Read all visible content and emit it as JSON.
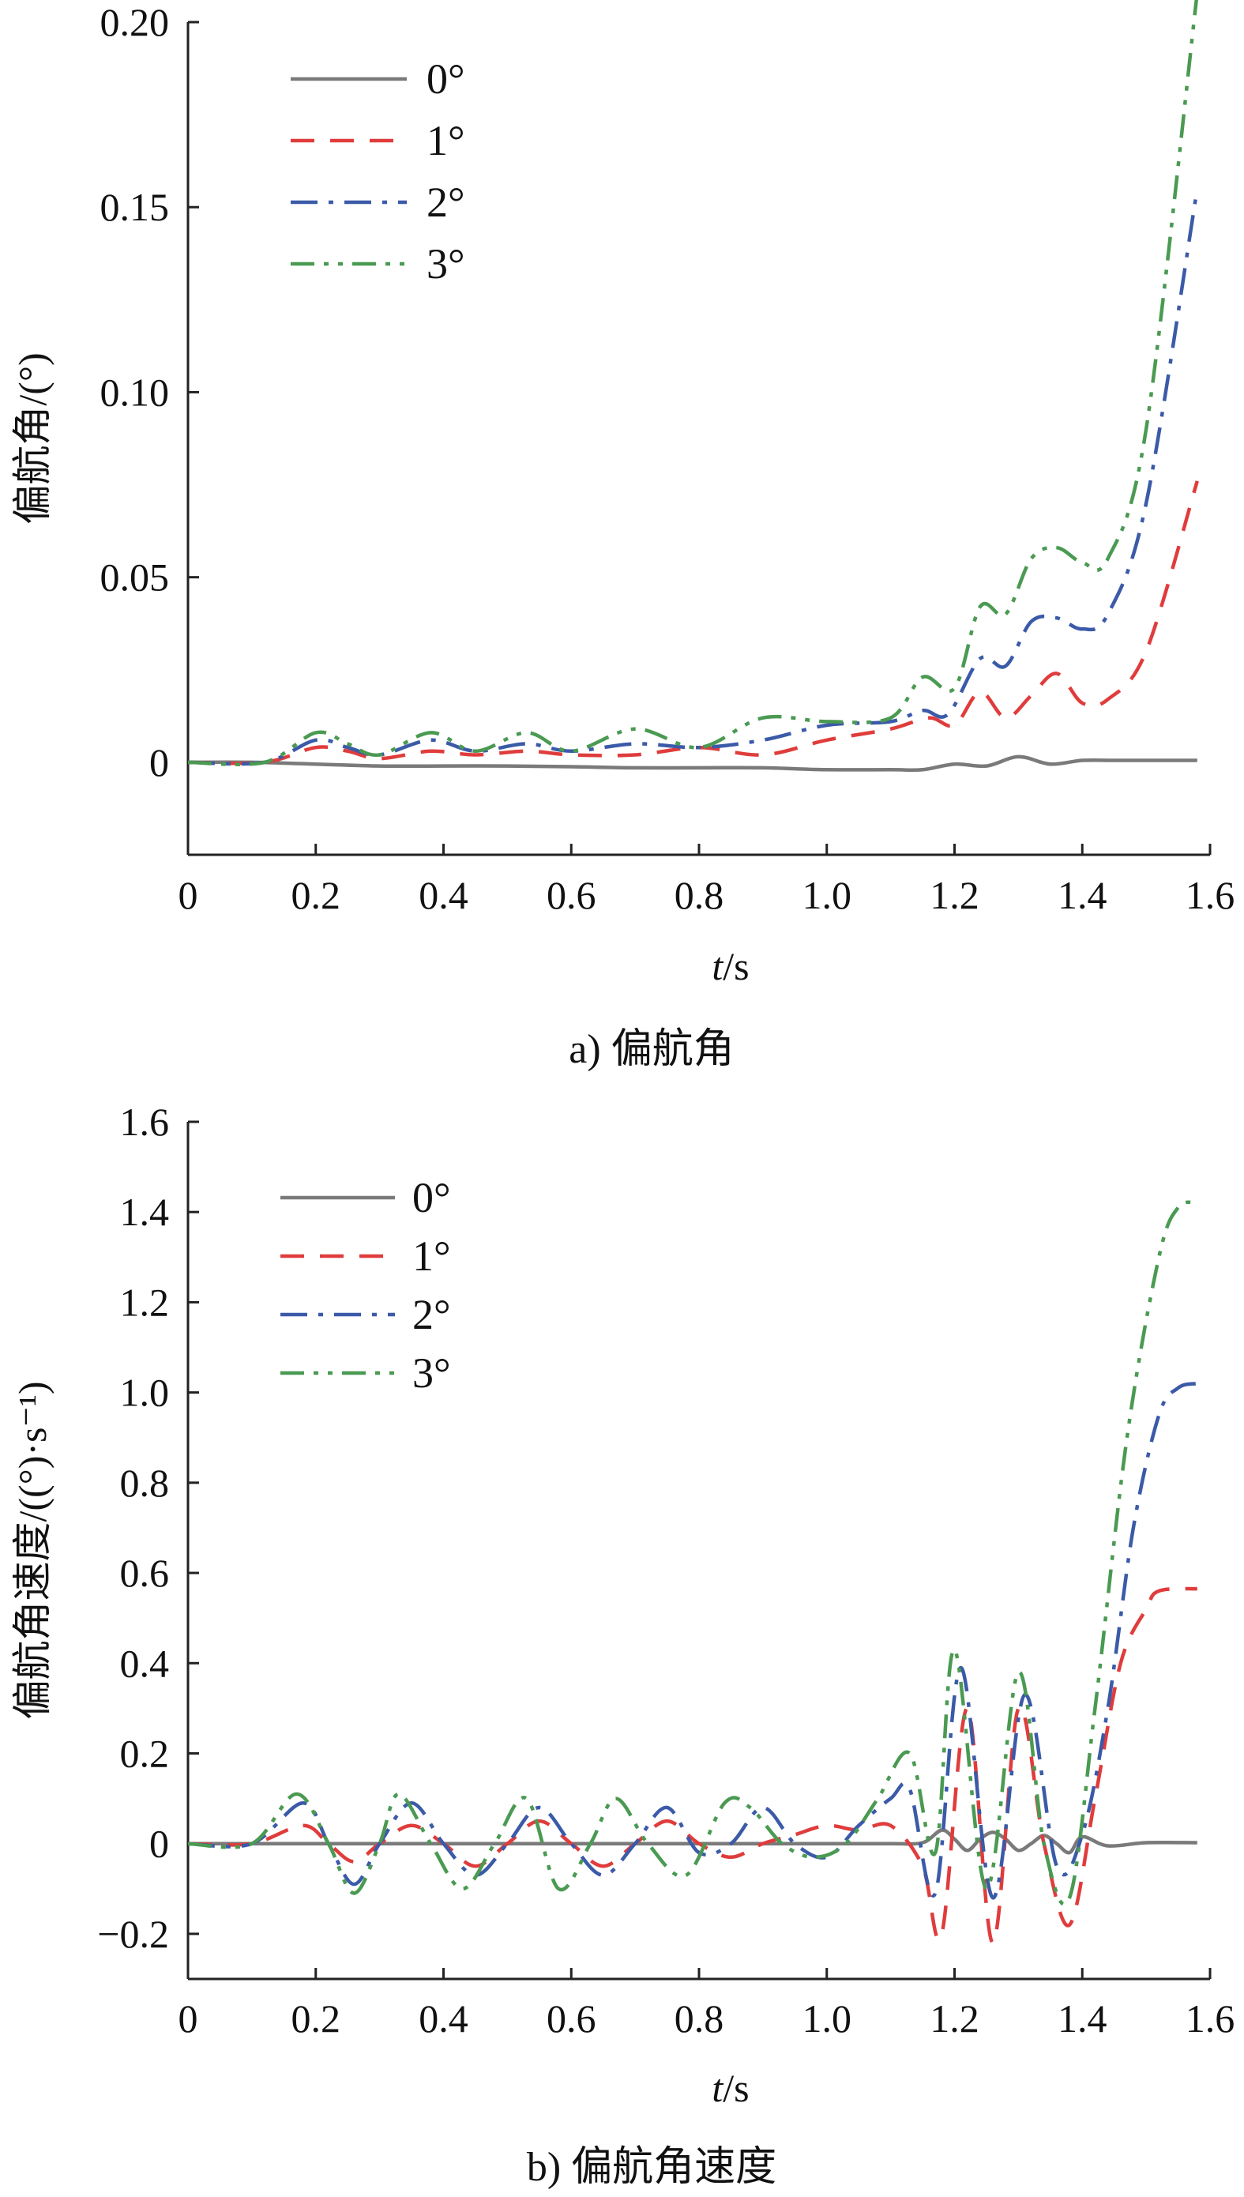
{
  "chart_data": [
    {
      "id": "a",
      "type": "line",
      "caption": "a) 偏航角",
      "xlabel_italic": "t",
      "xlabel_unit": "/s",
      "ylabel": "偏航角/(°)",
      "xlim": [
        0,
        1.6
      ],
      "ylim": [
        -0.025,
        0.2
      ],
      "xticks": [
        "0",
        "0.2",
        "0.4",
        "0.6",
        "0.8",
        "1.0",
        "1.2",
        "1.4",
        "1.6"
      ],
      "yticks": [
        {
          "value": 0,
          "label": "0"
        },
        {
          "value": 0.05,
          "label": "0.05"
        },
        {
          "value": 0.1,
          "label": "0.10"
        },
        {
          "value": 0.15,
          "label": "0.15"
        },
        {
          "value": 0.2,
          "label": "0.20"
        }
      ],
      "legend": "top-left",
      "series": [
        {
          "name": "0°",
          "color": "#7a7a7a",
          "dash": "solid",
          "x": [
            0,
            0.1,
            0.2,
            0.3,
            0.4,
            0.5,
            0.6,
            0.7,
            0.8,
            0.9,
            1.0,
            1.1,
            1.15,
            1.2,
            1.25,
            1.3,
            1.35,
            1.4,
            1.45,
            1.5,
            1.58
          ],
          "y": [
            0,
            0,
            -0.0005,
            -0.001,
            -0.001,
            -0.001,
            -0.0012,
            -0.0015,
            -0.0015,
            -0.0015,
            -0.002,
            -0.002,
            -0.002,
            -0.0005,
            -0.001,
            0.0015,
            -0.0005,
            0.0005,
            0.0005,
            0.0005,
            0.0005
          ]
        },
        {
          "name": "1°",
          "color": "#e03c3c",
          "dash": "dashed",
          "x": [
            0,
            0.12,
            0.2,
            0.25,
            0.3,
            0.38,
            0.45,
            0.53,
            0.6,
            0.7,
            0.8,
            0.9,
            1.0,
            1.1,
            1.16,
            1.2,
            1.24,
            1.28,
            1.32,
            1.36,
            1.4,
            1.44,
            1.5,
            1.58
          ],
          "y": [
            0,
            0,
            0.004,
            0.003,
            0.001,
            0.003,
            0.002,
            0.003,
            0.002,
            0.002,
            0.004,
            0.002,
            0.006,
            0.009,
            0.012,
            0.01,
            0.019,
            0.012,
            0.018,
            0.024,
            0.016,
            0.017,
            0.03,
            0.076
          ]
        },
        {
          "name": "2°",
          "color": "#3b5aa8",
          "dash": "dashdot",
          "x": [
            0,
            0.12,
            0.2,
            0.25,
            0.3,
            0.38,
            0.45,
            0.53,
            0.6,
            0.7,
            0.8,
            0.9,
            1.0,
            1.1,
            1.15,
            1.19,
            1.24,
            1.28,
            1.32,
            1.36,
            1.4,
            1.44,
            1.5,
            1.58
          ],
          "y": [
            0,
            0,
            0.006,
            0.004,
            0.002,
            0.006,
            0.003,
            0.005,
            0.003,
            0.005,
            0.004,
            0.006,
            0.01,
            0.011,
            0.014,
            0.013,
            0.028,
            0.026,
            0.038,
            0.039,
            0.036,
            0.04,
            0.07,
            0.155
          ]
        },
        {
          "name": "3°",
          "color": "#4a9a52",
          "dash": "dashdotdot",
          "x": [
            0,
            0.12,
            0.2,
            0.25,
            0.3,
            0.38,
            0.45,
            0.53,
            0.6,
            0.7,
            0.8,
            0.9,
            1.0,
            1.1,
            1.15,
            1.2,
            1.24,
            1.28,
            1.32,
            1.36,
            1.4,
            1.44,
            1.5,
            1.58
          ],
          "y": [
            0,
            0,
            0.008,
            0.005,
            0.002,
            0.008,
            0.003,
            0.008,
            0.003,
            0.009,
            0.004,
            0.012,
            0.011,
            0.012,
            0.023,
            0.02,
            0.042,
            0.04,
            0.055,
            0.058,
            0.054,
            0.055,
            0.09,
            0.208
          ]
        }
      ]
    },
    {
      "id": "b",
      "type": "line",
      "caption": "b) 偏航角速度",
      "xlabel_italic": "t",
      "xlabel_unit": "/s",
      "ylabel": "偏航角速度/((°)·s⁻¹)",
      "xlim": [
        0,
        1.6
      ],
      "ylim": [
        -0.3,
        1.6
      ],
      "xticks": [
        "0",
        "0.2",
        "0.4",
        "0.6",
        "0.8",
        "1.0",
        "1.2",
        "1.4",
        "1.6"
      ],
      "yticks": [
        {
          "value": -0.2,
          "label": "−0.2"
        },
        {
          "value": 0,
          "label": "0"
        },
        {
          "value": 0.2,
          "label": "0.2"
        },
        {
          "value": 0.4,
          "label": "0.4"
        },
        {
          "value": 0.6,
          "label": "0.6"
        },
        {
          "value": 0.8,
          "label": "0.8"
        },
        {
          "value": 1.0,
          "label": "1.0"
        },
        {
          "value": 1.2,
          "label": "1.2"
        },
        {
          "value": 1.4,
          "label": "1.4"
        },
        {
          "value": 1.6,
          "label": "1.6"
        }
      ],
      "legend": "top-left",
      "series": [
        {
          "name": "0°",
          "color": "#7a7a7a",
          "dash": "solid",
          "x": [
            0,
            0.1,
            0.2,
            0.4,
            0.6,
            0.8,
            1.0,
            1.1,
            1.15,
            1.18,
            1.2,
            1.22,
            1.24,
            1.26,
            1.28,
            1.3,
            1.32,
            1.34,
            1.36,
            1.38,
            1.4,
            1.44,
            1.5,
            1.58
          ],
          "y": [
            0,
            0,
            0,
            0,
            0,
            0,
            0,
            0,
            0.002,
            0.03,
            0.01,
            -0.015,
            0.01,
            0.025,
            0.01,
            -0.015,
            0.0,
            0.018,
            0.0,
            -0.02,
            0.015,
            -0.005,
            0.002,
            0.002
          ]
        },
        {
          "name": "1°",
          "color": "#e03c3c",
          "dash": "dashed",
          "x": [
            0,
            0.1,
            0.18,
            0.22,
            0.26,
            0.3,
            0.35,
            0.4,
            0.45,
            0.5,
            0.55,
            0.6,
            0.65,
            0.7,
            0.75,
            0.8,
            0.85,
            0.9,
            0.95,
            1.0,
            1.05,
            1.1,
            1.15,
            1.18,
            1.22,
            1.26,
            1.3,
            1.34,
            1.38,
            1.42,
            1.46,
            1.5,
            1.52,
            1.58
          ],
          "y": [
            0,
            0,
            0.04,
            0.0,
            -0.04,
            0.0,
            0.04,
            0.0,
            -0.05,
            0.0,
            0.05,
            0.0,
            -0.05,
            0.0,
            0.05,
            0.0,
            -0.03,
            0.0,
            0.02,
            0.04,
            0.03,
            0.04,
            -0.05,
            -0.2,
            0.3,
            -0.22,
            0.3,
            0.0,
            -0.18,
            0.1,
            0.4,
            0.52,
            0.56,
            0.565
          ]
        },
        {
          "name": "2°",
          "color": "#3b5aa8",
          "dash": "dashdot",
          "x": [
            0,
            0.1,
            0.18,
            0.22,
            0.26,
            0.3,
            0.35,
            0.4,
            0.45,
            0.5,
            0.55,
            0.6,
            0.65,
            0.7,
            0.75,
            0.8,
            0.85,
            0.9,
            0.95,
            1.0,
            1.05,
            1.1,
            1.13,
            1.17,
            1.21,
            1.26,
            1.31,
            1.36,
            1.4,
            1.44,
            1.48,
            1.52,
            1.55,
            1.58
          ],
          "y": [
            0,
            0,
            0.09,
            0.0,
            -0.09,
            0.0,
            0.09,
            0.0,
            -0.07,
            0.0,
            0.08,
            0.0,
            -0.07,
            0.0,
            0.08,
            -0.02,
            0.0,
            0.08,
            0.0,
            -0.03,
            0.04,
            0.1,
            0.12,
            -0.11,
            0.39,
            -0.12,
            0.33,
            -0.05,
            0.02,
            0.3,
            0.7,
            0.95,
            1.01,
            1.02
          ]
        },
        {
          "name": "3°",
          "color": "#4a9a52",
          "dash": "dashdotdot",
          "x": [
            0,
            0.1,
            0.17,
            0.22,
            0.26,
            0.3,
            0.33,
            0.38,
            0.43,
            0.48,
            0.53,
            0.58,
            0.63,
            0.67,
            0.72,
            0.78,
            0.84,
            0.88,
            0.93,
            0.98,
            1.03,
            1.08,
            1.13,
            1.17,
            1.2,
            1.25,
            1.3,
            1.34,
            1.38,
            1.42,
            1.47,
            1.52,
            1.55,
            1.58
          ],
          "y": [
            0,
            0,
            0.11,
            0.0,
            -0.11,
            0.0,
            0.11,
            0.0,
            -0.1,
            0.0,
            0.1,
            -0.1,
            0.0,
            0.1,
            0.0,
            -0.07,
            0.09,
            0.08,
            0.0,
            -0.03,
            0.0,
            0.1,
            0.2,
            -0.02,
            0.43,
            -0.1,
            0.38,
            0.0,
            -0.12,
            0.3,
            0.9,
            1.3,
            1.41,
            1.42
          ]
        }
      ]
    }
  ]
}
